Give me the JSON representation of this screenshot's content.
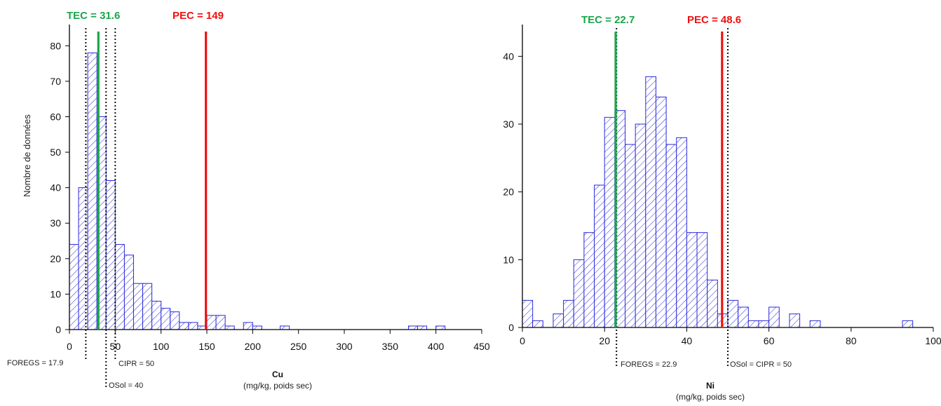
{
  "chart_data": [
    {
      "type": "bar",
      "variable": "Cu",
      "xlabel": "Cu",
      "xunit": "(mg/kg, poids sec)",
      "ylabel": "Nombre de données",
      "xlim": [
        0,
        450
      ],
      "ylim": [
        0,
        85
      ],
      "xticks": [
        0,
        50,
        100,
        150,
        200,
        250,
        300,
        350,
        400,
        450
      ],
      "yticks": [
        0,
        10,
        20,
        30,
        40,
        50,
        60,
        70,
        80
      ],
      "bin_width": 10,
      "bins": [
        {
          "start": 0,
          "count": 24
        },
        {
          "start": 10,
          "count": 40
        },
        {
          "start": 20,
          "count": 78
        },
        {
          "start": 30,
          "count": 60
        },
        {
          "start": 40,
          "count": 42
        },
        {
          "start": 50,
          "count": 24
        },
        {
          "start": 60,
          "count": 21
        },
        {
          "start": 70,
          "count": 13
        },
        {
          "start": 80,
          "count": 13
        },
        {
          "start": 90,
          "count": 8
        },
        {
          "start": 100,
          "count": 6
        },
        {
          "start": 110,
          "count": 5
        },
        {
          "start": 120,
          "count": 2
        },
        {
          "start": 130,
          "count": 2
        },
        {
          "start": 140,
          "count": 1
        },
        {
          "start": 150,
          "count": 4
        },
        {
          "start": 160,
          "count": 4
        },
        {
          "start": 170,
          "count": 1
        },
        {
          "start": 190,
          "count": 2
        },
        {
          "start": 200,
          "count": 1
        },
        {
          "start": 230,
          "count": 1
        },
        {
          "start": 370,
          "count": 1
        },
        {
          "start": 380,
          "count": 1
        },
        {
          "start": 400,
          "count": 1
        }
      ],
      "thresholds": [
        {
          "label": "TEC = 31.6",
          "value": 31.6,
          "color": "#1aa64a"
        },
        {
          "label": "PEC = 149",
          "value": 149,
          "color": "#ee1111"
        }
      ],
      "references": [
        {
          "label": "FOREGS = 17.9",
          "value": 17.9
        },
        {
          "label": "OSol = 40",
          "value": 40
        },
        {
          "label": "CIPR = 50",
          "value": 50
        }
      ]
    },
    {
      "type": "bar",
      "variable": "Ni",
      "xlabel": "Ni",
      "xunit": "(mg/kg, poids sec)",
      "ylabel": "",
      "xlim": [
        0,
        100
      ],
      "ylim": [
        0,
        45
      ],
      "xticks": [
        0,
        20,
        40,
        60,
        80,
        100
      ],
      "yticks": [
        0,
        10,
        20,
        30,
        40
      ],
      "bin_width": 2.5,
      "bins": [
        {
          "start": 0,
          "count": 4
        },
        {
          "start": 2.5,
          "count": 1
        },
        {
          "start": 7.5,
          "count": 2
        },
        {
          "start": 10,
          "count": 4
        },
        {
          "start": 12.5,
          "count": 10
        },
        {
          "start": 15,
          "count": 14
        },
        {
          "start": 17.5,
          "count": 21
        },
        {
          "start": 20,
          "count": 31
        },
        {
          "start": 22.5,
          "count": 32
        },
        {
          "start": 25,
          "count": 27
        },
        {
          "start": 27.5,
          "count": 30
        },
        {
          "start": 30,
          "count": 37
        },
        {
          "start": 32.5,
          "count": 34
        },
        {
          "start": 35,
          "count": 27
        },
        {
          "start": 37.5,
          "count": 28
        },
        {
          "start": 40,
          "count": 14
        },
        {
          "start": 42.5,
          "count": 14
        },
        {
          "start": 45,
          "count": 7
        },
        {
          "start": 47.5,
          "count": 2
        },
        {
          "start": 50,
          "count": 4
        },
        {
          "start": 52.5,
          "count": 3
        },
        {
          "start": 55,
          "count": 1
        },
        {
          "start": 57.5,
          "count": 1
        },
        {
          "start": 60,
          "count": 3
        },
        {
          "start": 65,
          "count": 2
        },
        {
          "start": 70,
          "count": 1
        },
        {
          "start": 92.5,
          "count": 1
        }
      ],
      "thresholds": [
        {
          "label": "TEC = 22.7",
          "value": 22.7,
          "color": "#1aa64a"
        },
        {
          "label": "PEC = 48.6",
          "value": 48.6,
          "color": "#ee1111"
        }
      ],
      "references": [
        {
          "label": "FOREGS =  22.9",
          "value": 22.9
        },
        {
          "label": "OSol = CIPR = 50",
          "value": 50
        }
      ]
    }
  ]
}
